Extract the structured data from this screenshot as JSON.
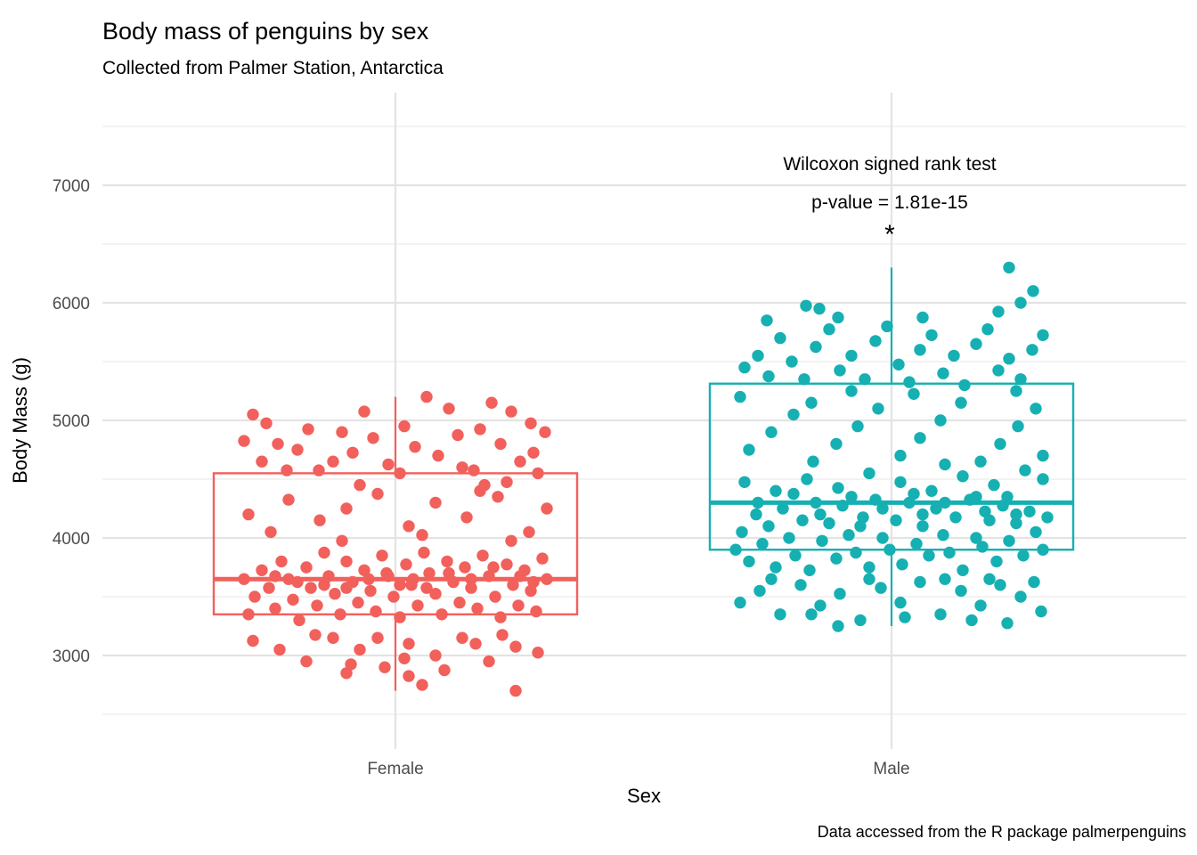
{
  "title": "Body mass of penguins by sex",
  "subtitle": "Collected from Palmer Station, Antarctica",
  "caption": "Data accessed from the R package palmerpenguins",
  "annotation": {
    "line1": "Wilcoxon signed rank test",
    "line2": "p-value = 1.81e-15",
    "star": "*"
  },
  "axes": {
    "x_title": "Sex",
    "y_title": "Body Mass (g)",
    "x_tick_labels": [
      "Female",
      "Male"
    ],
    "y_tick_labels": [
      "3000",
      "4000",
      "5000",
      "6000",
      "7000"
    ]
  },
  "colors": {
    "female": "#F2605C",
    "male": "#16B0B3",
    "grid_major": "#E3E3E3",
    "grid_minor": "#EFEFEF",
    "tick_label": "#4D4D4D",
    "text": "#000000",
    "background": "#FFFFFF"
  },
  "chart_data": {
    "type": "boxplot+jitter",
    "title": "Body mass of penguins by sex",
    "subtitle": "Collected from Palmer Station, Antarctica",
    "xlabel": "Sex",
    "ylabel": "Body Mass (g)",
    "categories": [
      "Female",
      "Male"
    ],
    "ylim": [
      2200,
      7800
    ],
    "y_major_gridlines": [
      3000,
      4000,
      5000,
      6000,
      7000
    ],
    "y_minor_gridlines": [
      2500,
      3500,
      4500,
      5500,
      6500,
      7500
    ],
    "grid": true,
    "legend": "none",
    "stat_note": "Wilcoxon signed rank test, p-value = 1.81e-15, significant (*) above Male group",
    "series": [
      {
        "name": "Female",
        "color": "#F2605C",
        "box": {
          "min": 2700,
          "q1": 3350,
          "median": 3650,
          "q3": 4550,
          "max": 5200
        },
        "points": [
          [
            -160,
            5050
          ],
          [
            -145,
            4975
          ],
          [
            -132,
            4800
          ],
          [
            -150,
            4650
          ],
          [
            -98,
            4925
          ],
          [
            -110,
            4750
          ],
          [
            -86,
            4575
          ],
          [
            -60,
            4900
          ],
          [
            -48,
            4725
          ],
          [
            -25,
            4850
          ],
          [
            -8,
            4625
          ],
          [
            10,
            4950
          ],
          [
            -35,
            5075
          ],
          [
            22,
            4775
          ],
          [
            48,
            4700
          ],
          [
            70,
            4875
          ],
          [
            95,
            4925
          ],
          [
            88,
            4575
          ],
          [
            118,
            4800
          ],
          [
            130,
            5075
          ],
          [
            108,
            5150
          ],
          [
            140,
            4650
          ],
          [
            155,
            4725
          ],
          [
            168,
            4900
          ],
          [
            35,
            5200
          ],
          [
            60,
            5100
          ],
          [
            152,
            4975
          ],
          [
            -170,
            4825
          ],
          [
            -122,
            4575
          ],
          [
            -70,
            4650
          ],
          [
            5,
            4550
          ],
          [
            75,
            4600
          ],
          [
            125,
            4475
          ],
          [
            -40,
            4450
          ],
          [
            100,
            4450
          ],
          [
            160,
            4550
          ],
          [
            -120,
            4325
          ],
          [
            -85,
            4150
          ],
          [
            -140,
            4050
          ],
          [
            -55,
            4250
          ],
          [
            -20,
            4375
          ],
          [
            15,
            4100
          ],
          [
            45,
            4300
          ],
          [
            80,
            4175
          ],
          [
            115,
            4350
          ],
          [
            150,
            4050
          ],
          [
            -165,
            4200
          ],
          [
            170,
            4250
          ],
          [
            130,
            3975
          ],
          [
            -60,
            3975
          ],
          [
            30,
            4025
          ],
          [
            95,
            4400
          ],
          [
            -170,
            3650
          ],
          [
            -158,
            3500
          ],
          [
            -165,
            3350
          ],
          [
            -150,
            3725
          ],
          [
            -142,
            3575
          ],
          [
            -135,
            3400
          ],
          [
            -128,
            3800
          ],
          [
            -120,
            3650
          ],
          [
            -115,
            3475
          ],
          [
            -108,
            3300
          ],
          [
            -100,
            3750
          ],
          [
            -95,
            3575
          ],
          [
            -88,
            3425
          ],
          [
            -80,
            3875
          ],
          [
            -75,
            3675
          ],
          [
            -68,
            3525
          ],
          [
            -62,
            3350
          ],
          [
            -55,
            3800
          ],
          [
            -48,
            3625
          ],
          [
            -42,
            3450
          ],
          [
            -35,
            3725
          ],
          [
            -28,
            3550
          ],
          [
            -22,
            3375
          ],
          [
            -15,
            3850
          ],
          [
            -8,
            3675
          ],
          [
            -2,
            3500
          ],
          [
            5,
            3325
          ],
          [
            12,
            3775
          ],
          [
            18,
            3600
          ],
          [
            25,
            3425
          ],
          [
            32,
            3875
          ],
          [
            38,
            3700
          ],
          [
            45,
            3525
          ],
          [
            52,
            3350
          ],
          [
            58,
            3800
          ],
          [
            65,
            3625
          ],
          [
            72,
            3450
          ],
          [
            78,
            3750
          ],
          [
            85,
            3575
          ],
          [
            92,
            3400
          ],
          [
            98,
            3850
          ],
          [
            105,
            3675
          ],
          [
            112,
            3500
          ],
          [
            118,
            3325
          ],
          [
            125,
            3775
          ],
          [
            132,
            3600
          ],
          [
            138,
            3425
          ],
          [
            145,
            3725
          ],
          [
            152,
            3550
          ],
          [
            158,
            3375
          ],
          [
            165,
            3825
          ],
          [
            170,
            3650
          ],
          [
            -55,
            3575
          ],
          [
            20,
            3650
          ],
          [
            -110,
            3625
          ],
          [
            60,
            3700
          ],
          [
            110,
            3750
          ],
          [
            -30,
            3650
          ],
          [
            85,
            3650
          ],
          [
            -80,
            3600
          ],
          [
            140,
            3675
          ],
          [
            35,
            3575
          ],
          [
            -10,
            3700
          ],
          [
            5,
            3600
          ],
          [
            -135,
            3675
          ],
          [
            155,
            3625
          ],
          [
            -130,
            3050
          ],
          [
            -100,
            2950
          ],
          [
            -70,
            3150
          ],
          [
            -40,
            3050
          ],
          [
            -12,
            2900
          ],
          [
            15,
            3100
          ],
          [
            45,
            3000
          ],
          [
            75,
            3150
          ],
          [
            105,
            2950
          ],
          [
            135,
            3075
          ],
          [
            -160,
            3125
          ],
          [
            160,
            3025
          ],
          [
            -50,
            2925
          ],
          [
            90,
            3100
          ],
          [
            10,
            2975
          ],
          [
            -90,
            3175
          ],
          [
            120,
            3175
          ],
          [
            55,
            2875
          ],
          [
            -20,
            3150
          ],
          [
            15,
            2825
          ],
          [
            30,
            2750
          ],
          [
            135,
            2700
          ],
          [
            -55,
            2850
          ]
        ]
      },
      {
        "name": "Male",
        "color": "#16B0B3",
        "box": {
          "min": 3250,
          "q1": 3900,
          "median": 4300,
          "q3": 5312.5,
          "max": 6300
        },
        "points": [
          [
            132,
            6300
          ],
          [
            -96,
            5975
          ],
          [
            -81,
            5950
          ],
          [
            145,
            6000
          ],
          [
            159,
            6100
          ],
          [
            120,
            5925
          ],
          [
            -165,
            5450
          ],
          [
            -150,
            5550
          ],
          [
            -138,
            5375
          ],
          [
            -125,
            5700
          ],
          [
            -112,
            5500
          ],
          [
            -98,
            5350
          ],
          [
            -85,
            5625
          ],
          [
            -70,
            5775
          ],
          [
            -58,
            5425
          ],
          [
            -45,
            5550
          ],
          [
            -30,
            5350
          ],
          [
            -18,
            5675
          ],
          [
            -5,
            5800
          ],
          [
            8,
            5475
          ],
          [
            20,
            5325
          ],
          [
            32,
            5600
          ],
          [
            45,
            5725
          ],
          [
            58,
            5400
          ],
          [
            70,
            5550
          ],
          [
            82,
            5300
          ],
          [
            95,
            5650
          ],
          [
            108,
            5775
          ],
          [
            120,
            5425
          ],
          [
            132,
            5525
          ],
          [
            145,
            5350
          ],
          [
            158,
            5600
          ],
          [
            170,
            5725
          ],
          [
            -140,
            5850
          ],
          [
            -60,
            5875
          ],
          [
            35,
            5875
          ],
          [
            -160,
            4750
          ],
          [
            -135,
            4900
          ],
          [
            -110,
            5050
          ],
          [
            -88,
            4650
          ],
          [
            -62,
            4800
          ],
          [
            -38,
            4950
          ],
          [
            -15,
            5100
          ],
          [
            10,
            4700
          ],
          [
            32,
            4850
          ],
          [
            55,
            5000
          ],
          [
            78,
            5150
          ],
          [
            100,
            4650
          ],
          [
            122,
            4800
          ],
          [
            142,
            4950
          ],
          [
            162,
            5100
          ],
          [
            -170,
            5200
          ],
          [
            170,
            4700
          ],
          [
            -45,
            5250
          ],
          [
            60,
            4625
          ],
          [
            -90,
            5150
          ],
          [
            25,
            5225
          ],
          [
            140,
            5250
          ],
          [
            -175,
            3900
          ],
          [
            -168,
            4050
          ],
          [
            -160,
            3800
          ],
          [
            -152,
            4200
          ],
          [
            -145,
            3950
          ],
          [
            -138,
            4100
          ],
          [
            -130,
            3750
          ],
          [
            -122,
            4250
          ],
          [
            -115,
            4000
          ],
          [
            -108,
            3850
          ],
          [
            -100,
            4150
          ],
          [
            -92,
            3725
          ],
          [
            -85,
            4300
          ],
          [
            -78,
            3975
          ],
          [
            -70,
            4125
          ],
          [
            -62,
            3825
          ],
          [
            -55,
            4275
          ],
          [
            -48,
            4025
          ],
          [
            -40,
            3875
          ],
          [
            -32,
            4175
          ],
          [
            -25,
            3750
          ],
          [
            -18,
            4325
          ],
          [
            -10,
            4000
          ],
          [
            -2,
            3900
          ],
          [
            5,
            4150
          ],
          [
            12,
            3775
          ],
          [
            20,
            4300
          ],
          [
            28,
            3950
          ],
          [
            35,
            4100
          ],
          [
            42,
            3850
          ],
          [
            50,
            4250
          ],
          [
            58,
            4025
          ],
          [
            65,
            3875
          ],
          [
            72,
            4175
          ],
          [
            80,
            3725
          ],
          [
            88,
            4325
          ],
          [
            95,
            4000
          ],
          [
            102,
            3925
          ],
          [
            110,
            4150
          ],
          [
            118,
            3800
          ],
          [
            125,
            4275
          ],
          [
            132,
            3975
          ],
          [
            140,
            4125
          ],
          [
            148,
            3850
          ],
          [
            155,
            4225
          ],
          [
            162,
            4050
          ],
          [
            170,
            3900
          ],
          [
            175,
            4175
          ],
          [
            -130,
            4400
          ],
          [
            -95,
            4500
          ],
          [
            -60,
            4425
          ],
          [
            -25,
            4550
          ],
          [
            10,
            4475
          ],
          [
            45,
            4400
          ],
          [
            80,
            4525
          ],
          [
            115,
            4450
          ],
          [
            150,
            4575
          ],
          [
            -165,
            4475
          ],
          [
            170,
            4500
          ],
          [
            -45,
            4350
          ],
          [
            25,
            4375
          ],
          [
            95,
            4350
          ],
          [
            -110,
            4375
          ],
          [
            60,
            4300
          ],
          [
            130,
            4350
          ],
          [
            -80,
            4200
          ],
          [
            -10,
            4250
          ],
          [
            140,
            4200
          ],
          [
            -150,
            4300
          ],
          [
            105,
            4225
          ],
          [
            35,
            4200
          ],
          [
            -35,
            4100
          ],
          [
            -170,
            3450
          ],
          [
            -148,
            3550
          ],
          [
            -125,
            3350
          ],
          [
            -102,
            3600
          ],
          [
            -80,
            3425
          ],
          [
            -58,
            3525
          ],
          [
            -35,
            3300
          ],
          [
            -12,
            3575
          ],
          [
            10,
            3450
          ],
          [
            32,
            3625
          ],
          [
            55,
            3350
          ],
          [
            78,
            3550
          ],
          [
            100,
            3425
          ],
          [
            122,
            3600
          ],
          [
            145,
            3500
          ],
          [
            168,
            3375
          ],
          [
            -60,
            3250
          ],
          [
            15,
            3325
          ],
          [
            90,
            3300
          ],
          [
            -135,
            3650
          ],
          [
            60,
            3650
          ],
          [
            130,
            3275
          ],
          [
            -90,
            3350
          ],
          [
            -25,
            3650
          ],
          [
            110,
            3650
          ],
          [
            160,
            3625
          ]
        ]
      }
    ]
  }
}
